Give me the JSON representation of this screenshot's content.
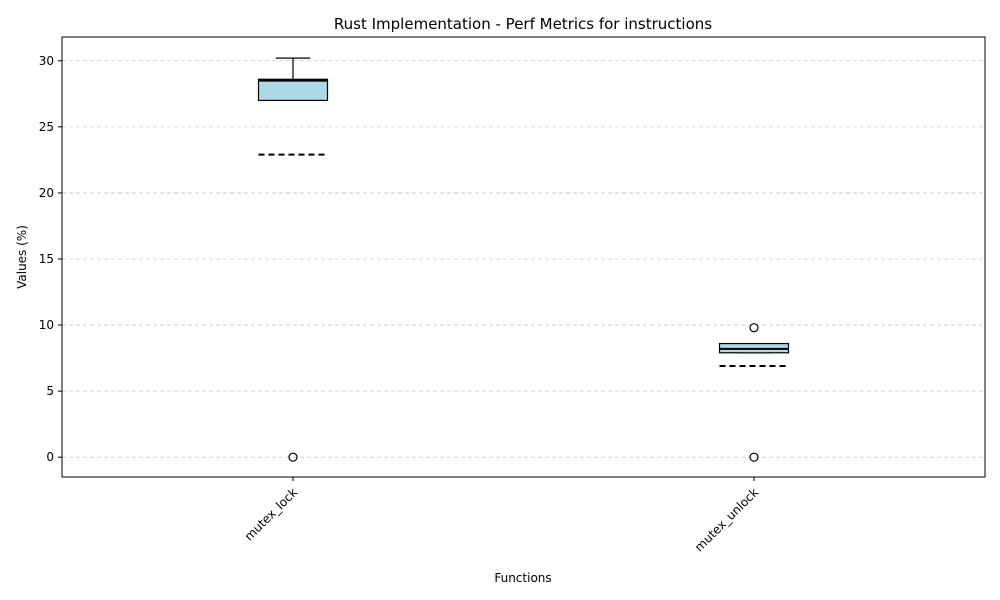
{
  "chart_data": {
    "type": "box",
    "title": "Rust Implementation - Perf Metrics for instructions",
    "xlabel": "Functions",
    "ylabel": "Values (%)",
    "ylim": [
      -1.5,
      31.8
    ],
    "yticks": [
      0,
      5,
      10,
      15,
      20,
      25,
      30
    ],
    "grid": "y-dashed",
    "categories": [
      "mutex_lock",
      "mutex_unlock"
    ],
    "boxes": [
      {
        "category": "mutex_lock",
        "whisker_low": 27.0,
        "q1": 27.0,
        "median": 28.5,
        "q3": 28.6,
        "whisker_high": 30.2,
        "mean": 22.9,
        "outliers": [
          0.0
        ]
      },
      {
        "category": "mutex_unlock",
        "whisker_low": 7.9,
        "q1": 7.9,
        "median": 8.2,
        "q3": 8.6,
        "whisker_high": 8.6,
        "mean": 6.9,
        "outliers": [
          9.8,
          0.0
        ]
      }
    ],
    "box_fill": "#add8e6",
    "grid_color": "#c8c8c8"
  }
}
